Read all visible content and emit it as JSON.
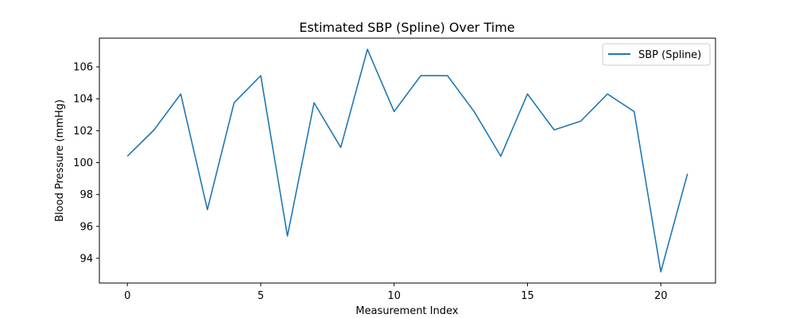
{
  "chart_data": {
    "type": "line",
    "title": "Estimated SBP (Spline) Over Time",
    "xlabel": "Measurement Index",
    "ylabel": "Blood Pressure (mmHg)",
    "xlim": [
      -1.05,
      22.05
    ],
    "ylim": [
      92.45,
      107.8
    ],
    "xticks": [
      0,
      5,
      10,
      15,
      20
    ],
    "yticks": [
      94,
      96,
      98,
      100,
      102,
      104,
      106
    ],
    "grid": false,
    "legend_position": "top-right",
    "series": [
      {
        "name": "SBP (Spline)",
        "color": "#1f77b4",
        "x": [
          0,
          1,
          2,
          3,
          4,
          5,
          6,
          7,
          8,
          9,
          10,
          11,
          12,
          13,
          14,
          15,
          16,
          17,
          18,
          19,
          20,
          21
        ],
        "y": [
          100.4,
          102.05,
          104.3,
          97.05,
          103.75,
          105.45,
          95.4,
          103.75,
          100.95,
          107.1,
          103.2,
          105.45,
          105.45,
          103.2,
          100.4,
          104.3,
          102.05,
          102.6,
          104.3,
          103.2,
          93.15,
          99.3
        ]
      }
    ]
  }
}
